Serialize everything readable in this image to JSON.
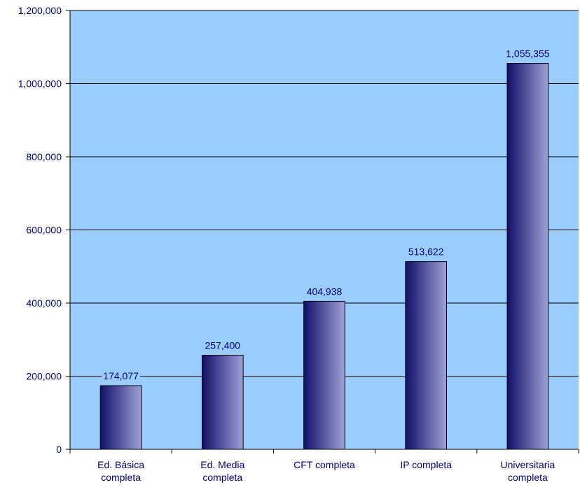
{
  "chart_data": {
    "type": "bar",
    "categories": [
      [
        "Ed. Básica",
        "completa"
      ],
      [
        "Ed. Media",
        "completa"
      ],
      [
        "CFT completa"
      ],
      [
        "IP completa"
      ],
      [
        "Universitaria",
        "completa"
      ]
    ],
    "values": [
      174077,
      257400,
      404938,
      513622,
      1055355
    ],
    "data_labels": [
      "174,077",
      "257,400",
      "404,938",
      "513,622",
      "1,055,355"
    ],
    "y_ticks": [
      "0",
      "200,000",
      "400,000",
      "600,000",
      "800,000",
      "1,000,000",
      "1,200,000"
    ],
    "ylim": [
      0,
      1200000
    ],
    "y_step": 200000,
    "title": "",
    "xlabel": "",
    "ylabel": "",
    "grid": true,
    "legend": "none",
    "colors": {
      "plot_background": "#99CCFF",
      "bar_dark": "#10106A",
      "bar_light": "#A0A0D8",
      "text": "#000080",
      "gridline": "#000000"
    }
  }
}
